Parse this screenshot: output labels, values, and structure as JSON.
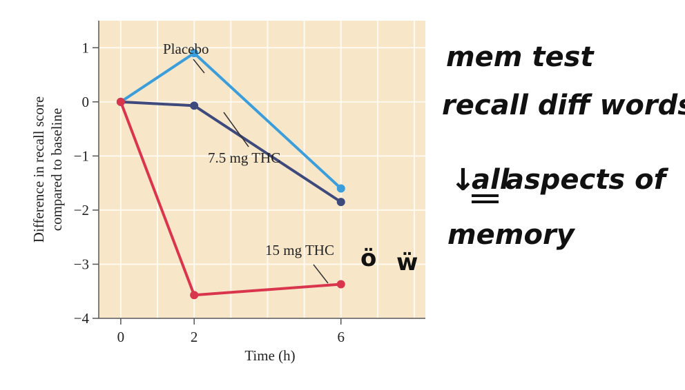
{
  "chart_data": {
    "type": "line",
    "x": [
      0,
      2,
      6
    ],
    "xticks": [
      0,
      2,
      6
    ],
    "yticks": [
      1,
      0,
      -1,
      -2,
      -3,
      -4
    ],
    "xlim": [
      -0.6,
      8.3
    ],
    "ylim": [
      -4,
      1.5
    ],
    "grid": true,
    "xlabel": "Time (h)",
    "ylabel": [
      "Difference in recall score",
      "compared to baseline"
    ],
    "series": [
      {
        "name": "Placebo",
        "values": [
          0,
          0.9,
          -1.6
        ],
        "color": "#3b9edb"
      },
      {
        "name": "7.5 mg THC",
        "values": [
          0,
          -0.07,
          -1.85
        ],
        "color": "#3e4a7c"
      },
      {
        "name": "15 mg THC",
        "values": [
          0,
          -3.57,
          -3.37
        ],
        "color": "#d9364e"
      }
    ],
    "plot_background": "#f8e6c9",
    "grid_color": "#fffaf1"
  },
  "handwritten_notes": {
    "lines": [
      "mem test",
      "recall diff words"
    ],
    "arrow": "↓",
    "emphasis_word": "all",
    "line3_rest": "aspects of",
    "line4": "memory",
    "faces": [
      "ö",
      "ẅ"
    ],
    "ink_color": "#111111"
  }
}
